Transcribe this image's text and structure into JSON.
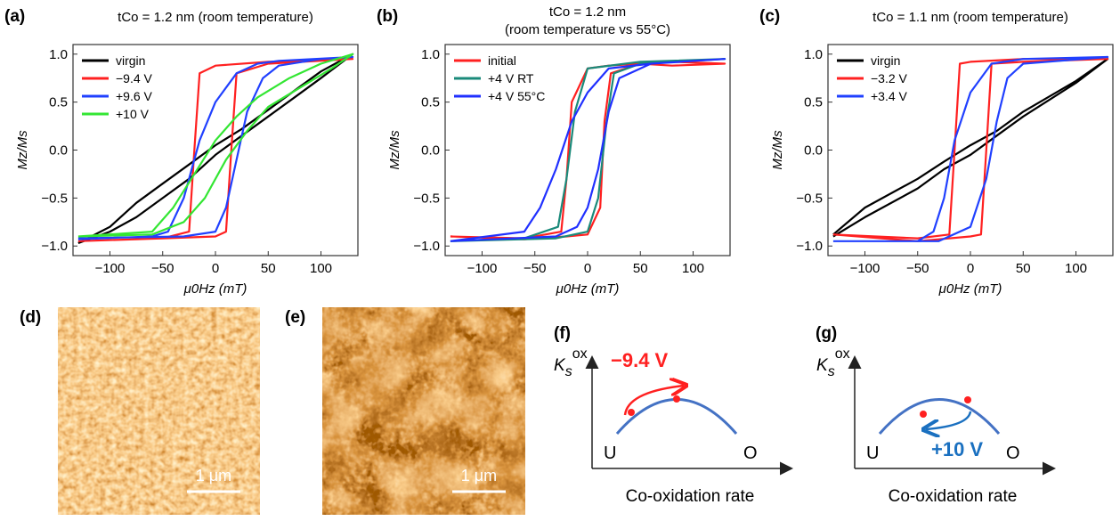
{
  "chart_data": [
    {
      "type": "line",
      "label": "(a)",
      "title": "tCo = 1.2 nm (room temperature)",
      "x_label": "μ0Hz (mT)",
      "y_label": "Mz/Ms",
      "legend": "upper left",
      "grid": false,
      "xlim": [
        -135,
        135
      ],
      "ylim": [
        -1.1,
        1.1
      ],
      "xticks": [
        {
          "value": -100,
          "label": "−100"
        },
        {
          "value": -50,
          "label": "−50"
        },
        0,
        50,
        100
      ],
      "yticks": [
        {
          "value": -1,
          "label": "−1.0"
        },
        {
          "value": -0.5,
          "label": "−0.5"
        },
        {
          "value": 0,
          "label": "0.0"
        },
        0.5,
        {
          "value": 1,
          "label": "1.0"
        }
      ],
      "series": [
        {
          "name": "virgin",
          "color": "#000000",
          "x": [
            -130,
            -100,
            -75,
            -50,
            -25,
            0,
            25,
            50,
            75,
            100,
            130,
            100,
            75,
            50,
            25,
            0,
            -25,
            -50,
            -75,
            -100,
            -130
          ],
          "values": [
            -0.97,
            -0.85,
            -0.7,
            -0.5,
            -0.3,
            -0.05,
            0.15,
            0.35,
            0.55,
            0.75,
            1.0,
            0.82,
            0.62,
            0.42,
            0.22,
            0.05,
            -0.15,
            -0.35,
            -0.55,
            -0.8,
            -0.97
          ]
        },
        {
          "name": "−9.4 V",
          "color": "#ff2020",
          "x": [
            -130,
            -50,
            0,
            10,
            15,
            20,
            50,
            130,
            50,
            0,
            -15,
            -20,
            -25,
            -50,
            -130
          ],
          "values": [
            -0.95,
            -0.92,
            -0.9,
            -0.85,
            0.0,
            0.8,
            0.9,
            0.95,
            0.92,
            0.88,
            0.8,
            0.0,
            -0.85,
            -0.92,
            -0.95
          ]
        },
        {
          "name": "+9.6 V",
          "color": "#2040ff",
          "x": [
            -130,
            -30,
            0,
            10,
            20,
            30,
            45,
            60,
            100,
            130,
            60,
            40,
            20,
            0,
            -15,
            -30,
            -45,
            -60,
            -130
          ],
          "values": [
            -0.92,
            -0.9,
            -0.85,
            -0.6,
            -0.1,
            0.4,
            0.75,
            0.88,
            0.95,
            0.97,
            0.93,
            0.9,
            0.8,
            0.5,
            0.1,
            -0.5,
            -0.85,
            -0.9,
            -0.93
          ]
        },
        {
          "name": "+10 V",
          "color": "#33e633",
          "x": [
            -130,
            -60,
            -30,
            -10,
            10,
            30,
            50,
            80,
            110,
            130,
            100,
            70,
            40,
            20,
            0,
            -20,
            -40,
            -60,
            -130
          ],
          "values": [
            -0.9,
            -0.88,
            -0.75,
            -0.5,
            -0.1,
            0.2,
            0.45,
            0.65,
            0.85,
            1.0,
            0.9,
            0.75,
            0.55,
            0.35,
            0.1,
            -0.25,
            -0.6,
            -0.85,
            -0.9
          ]
        }
      ]
    },
    {
      "type": "line",
      "label": "(b)",
      "title": "tCo = 1.2 nm",
      "subtitle": "(room temperature vs 55°C)",
      "x_label": "μ0Hz (mT)",
      "y_label": "Mz/Ms",
      "legend": "upper left",
      "grid": false,
      "xlim": [
        -135,
        135
      ],
      "ylim": [
        -1.1,
        1.1
      ],
      "xticks": [
        {
          "value": -100,
          "label": "−100"
        },
        {
          "value": -50,
          "label": "−50"
        },
        0,
        50,
        100
      ],
      "yticks": [
        {
          "value": -1,
          "label": "−1.0"
        },
        {
          "value": -0.5,
          "label": "−0.5"
        },
        {
          "value": 0,
          "label": "0.0"
        },
        0.5,
        {
          "value": 1,
          "label": "1.0"
        }
      ],
      "series": [
        {
          "name": "initial",
          "color": "#ff2020",
          "x": [
            -130,
            -60,
            -20,
            0,
            12,
            16,
            22,
            50,
            80,
            130,
            80,
            20,
            0,
            -15,
            -20,
            -25,
            -60,
            -130
          ],
          "values": [
            -0.9,
            -0.93,
            -0.9,
            -0.88,
            -0.6,
            0.3,
            0.8,
            0.9,
            0.88,
            0.9,
            0.92,
            0.88,
            0.85,
            0.5,
            -0.3,
            -0.85,
            -0.92,
            -0.9
          ]
        },
        {
          "name": "+4 V RT",
          "color": "#1a8a7a",
          "x": [
            -130,
            -30,
            0,
            10,
            18,
            25,
            50,
            130,
            50,
            0,
            -12,
            -20,
            -28,
            -60,
            -130
          ],
          "values": [
            -0.95,
            -0.92,
            -0.85,
            -0.5,
            0.3,
            0.8,
            0.9,
            0.95,
            0.92,
            0.85,
            0.4,
            -0.3,
            -0.8,
            -0.92,
            -0.95
          ]
        },
        {
          "name": "+4 V 55°C",
          "color": "#2030ff",
          "x": [
            -130,
            -30,
            -10,
            0,
            10,
            20,
            30,
            60,
            130,
            60,
            20,
            0,
            -15,
            -30,
            -45,
            -60,
            -130
          ],
          "values": [
            -0.95,
            -0.9,
            -0.8,
            -0.6,
            -0.2,
            0.4,
            0.75,
            0.9,
            0.95,
            0.9,
            0.85,
            0.6,
            0.3,
            -0.2,
            -0.6,
            -0.85,
            -0.95
          ]
        }
      ]
    },
    {
      "type": "line",
      "label": "(c)",
      "title": "tCo = 1.1 nm (room temperature)",
      "x_label": "μ0Hz (mT)",
      "y_label": "Mz/Ms",
      "legend": "upper left",
      "grid": false,
      "xlim": [
        -135,
        135
      ],
      "ylim": [
        -1.1,
        1.1
      ],
      "xticks": [
        {
          "value": -100,
          "label": "−100"
        },
        {
          "value": -50,
          "label": "−50"
        },
        0,
        50,
        100
      ],
      "yticks": [
        {
          "value": -1,
          "label": "−1.0"
        },
        {
          "value": -0.5,
          "label": "−0.5"
        },
        {
          "value": 0,
          "label": "0.0"
        },
        0.5,
        {
          "value": 1,
          "label": "1.0"
        }
      ],
      "series": [
        {
          "name": "virgin",
          "color": "#000000",
          "x": [
            -130,
            -100,
            -50,
            -25,
            0,
            25,
            50,
            100,
            130,
            100,
            50,
            25,
            0,
            -25,
            -50,
            -100,
            -130
          ],
          "values": [
            -0.9,
            -0.7,
            -0.4,
            -0.2,
            -0.05,
            0.15,
            0.35,
            0.7,
            0.95,
            0.72,
            0.4,
            0.2,
            0.05,
            -0.12,
            -0.3,
            -0.6,
            -0.88
          ]
        },
        {
          "name": "−3.2 V",
          "color": "#ff2020",
          "x": [
            -130,
            -50,
            0,
            10,
            15,
            20,
            50,
            130,
            50,
            0,
            -10,
            -15,
            -20,
            -50,
            -130
          ],
          "values": [
            -0.88,
            -0.95,
            -0.9,
            -0.88,
            0.0,
            0.9,
            0.92,
            0.95,
            0.95,
            0.92,
            0.9,
            0.0,
            -0.88,
            -0.92,
            -0.88
          ]
        },
        {
          "name": "+3.4 V",
          "color": "#2040ff",
          "x": [
            -130,
            -30,
            0,
            15,
            25,
            35,
            50,
            130,
            50,
            20,
            0,
            -15,
            -25,
            -35,
            -50,
            -130
          ],
          "values": [
            -0.95,
            -0.95,
            -0.8,
            -0.3,
            0.3,
            0.75,
            0.9,
            0.97,
            0.95,
            0.9,
            0.6,
            0.1,
            -0.5,
            -0.85,
            -0.95,
            -0.95
          ]
        }
      ]
    }
  ],
  "images": [
    {
      "label": "(d)",
      "scale_bar": "1 μm"
    },
    {
      "label": "(e)",
      "scale_bar": "1 μm"
    }
  ],
  "diagrams": [
    {
      "label": "(f)",
      "y_label": "K",
      "y_label_sub": "s",
      "y_label_sup": "ox",
      "start": "U",
      "end": "O",
      "x_label": "Co-oxidation rate",
      "arrow_label": "−9.4 V"
    },
    {
      "label": "(g)",
      "y_label": "K",
      "y_label_sub": "s",
      "y_label_sup": "ox",
      "start": "U",
      "end": "O",
      "x_label": "Co-oxidation rate",
      "arrow_label": "+10 V"
    }
  ]
}
